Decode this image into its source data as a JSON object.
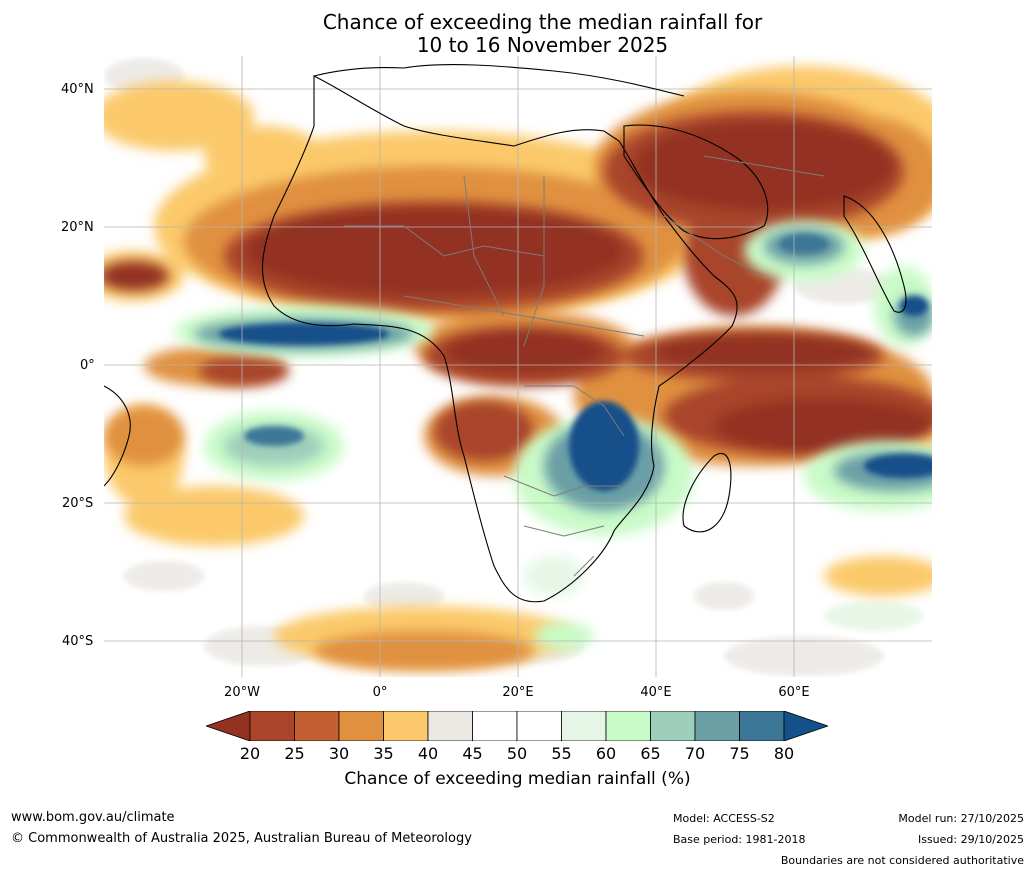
{
  "title": {
    "line1": "Chance of exceeding the median rainfall for",
    "line2": "10 to 16 November 2025"
  },
  "axes": {
    "lat_labels": [
      "40°N",
      "20°N",
      "0°",
      "20°S",
      "40°S"
    ],
    "lon_labels": [
      "20°W",
      "0°",
      "20°E",
      "40°E",
      "60°E"
    ]
  },
  "colorbar": {
    "ticks": [
      "20",
      "25",
      "30",
      "35",
      "40",
      "45",
      "50",
      "55",
      "60",
      "65",
      "70",
      "75",
      "80"
    ],
    "colors": [
      "#933220",
      "#a8452a",
      "#c35f30",
      "#e0913f",
      "#fbc96b",
      "#ece9e5",
      "#ffffff",
      "#ffffff",
      "#e6f6e6",
      "#c9fbc8",
      "#9ecfbb",
      "#6b9fa6",
      "#3d7797",
      "#14508a"
    ],
    "label": "Chance of exceeding median rainfall (%)"
  },
  "footer": {
    "website": "www.bom.gov.au/climate",
    "copyright": "© Commonwealth of Australia 2025, Australian Bureau of Meteorology",
    "model": "Model: ACCESS-S2",
    "base_period": "Base period: 1981-2018",
    "model_run": "Model run: 27/10/2025",
    "issued": "Issued: 29/10/2025",
    "disclaimer": "Boundaries are not considered authoritative"
  }
}
